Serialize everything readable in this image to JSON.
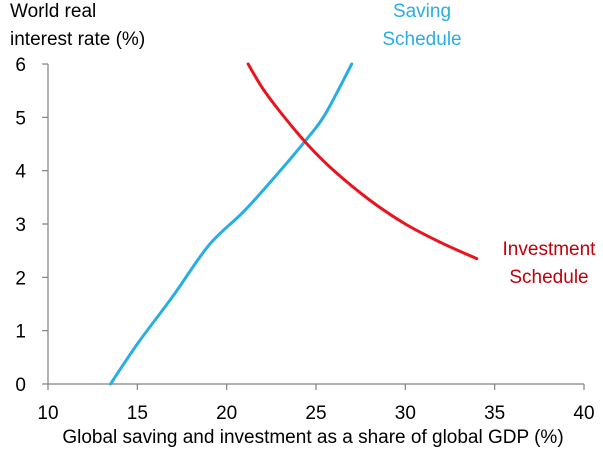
{
  "chart_data": {
    "type": "line",
    "title": "",
    "xlabel": "Global saving and investment as a share of global GDP (%)",
    "ylabel_lines": [
      "World real",
      "interest rate (%)"
    ],
    "xlim": [
      10,
      40
    ],
    "ylim": [
      0,
      6
    ],
    "x_ticks": [
      "10",
      "15",
      "20",
      "25",
      "30",
      "35",
      "40"
    ],
    "y_ticks": [
      "0",
      "1",
      "2",
      "3",
      "4",
      "5",
      "6"
    ],
    "grid": false,
    "series": [
      {
        "name_lines": [
          "Saving",
          "Schedule"
        ],
        "color": "#29aee3",
        "x": [
          13.5,
          15,
          17,
          19,
          21,
          23,
          24.5,
          25.5,
          27
        ],
        "y": [
          0,
          0.75,
          1.65,
          2.6,
          3.25,
          4.0,
          4.6,
          5.05,
          6
        ]
      },
      {
        "name_lines": [
          "Investment",
          "Schedule"
        ],
        "color": "#e8141e",
        "x": [
          21.2,
          22,
          23,
          24.5,
          26,
          28,
          30,
          32,
          34
        ],
        "y": [
          6,
          5.55,
          5.1,
          4.5,
          4.0,
          3.45,
          3.0,
          2.65,
          2.35
        ]
      }
    ]
  }
}
